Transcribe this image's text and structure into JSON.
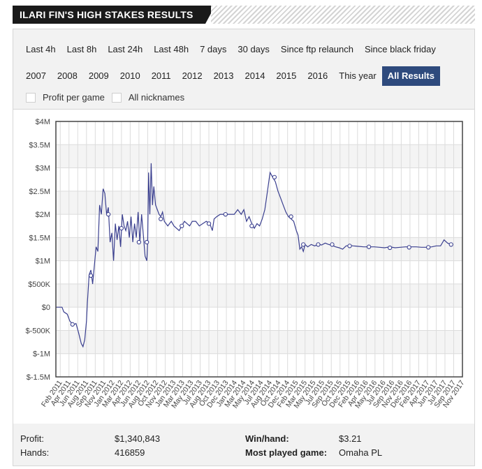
{
  "header": {
    "title": "ILARI FIN'S HIGH STAKES RESULTS"
  },
  "filters": {
    "row1": [
      "Last 4h",
      "Last 8h",
      "Last 24h",
      "Last 48h",
      "7 days",
      "30 days",
      "Since ftp relaunch",
      "Since black friday"
    ],
    "row2": [
      "2007",
      "2008",
      "2009",
      "2010",
      "2011",
      "2012",
      "2013",
      "2014",
      "2015",
      "2016",
      "This year",
      "All Results"
    ],
    "active": "All Results",
    "checkboxes": [
      "Profit per game",
      "All nicknames"
    ]
  },
  "stats": {
    "profit_label": "Profit:",
    "profit_value": "$1,340,843",
    "hands_label": "Hands:",
    "hands_value": "416859",
    "winhand_label": "Win/hand:",
    "winhand_value": "$3.21",
    "game_label": "Most played game:",
    "game_value": "Omaha PL"
  },
  "chart_data": {
    "type": "line",
    "title": "",
    "xlabel": "",
    "ylabel": "",
    "ylim": [
      -1500000,
      4000000
    ],
    "y_ticks": [
      4000000,
      3500000,
      3000000,
      2500000,
      2000000,
      1500000,
      1000000,
      500000,
      0,
      -500000,
      -1000000,
      -1500000
    ],
    "y_tick_labels": [
      "$4M",
      "$3.5M",
      "$3M",
      "$2.5M",
      "$2M",
      "$1.5M",
      "$1M",
      "$500K",
      "$0",
      "$-500K",
      "$-1M",
      "$-1.5M"
    ],
    "x_tick_labels": [
      "Feb 2011",
      "Apr 2011",
      "Jun 2011",
      "Aug 2011",
      "Sep 2011",
      "Nov 2011",
      "Jan 2012",
      "Mar 2012",
      "Apr 2012",
      "Jun 2012",
      "Aug 2012",
      "Oct 2012",
      "Nov 2012",
      "Jan 2013",
      "Mar 2013",
      "May 2013",
      "Jul 2013",
      "Aug 2013",
      "Oct 2013",
      "Dec 2013",
      "Jan 2014",
      "Mar 2014",
      "May 2014",
      "Jul 2014",
      "Aug 2014",
      "Oct 2014",
      "Dec 2014",
      "Feb 2015",
      "Mar 2015",
      "May 2015",
      "Jul 2015",
      "Sep 2015",
      "Oct 2015",
      "Dec 2015",
      "Feb 2016",
      "Apr 2016",
      "May 2016",
      "Jul 2016",
      "Sep 2016",
      "Nov 2016",
      "Dec 2016",
      "Feb 2017",
      "Apr 2017",
      "Jun 2017",
      "Jul 2017",
      "Sep 2017",
      "Nov 2017"
    ],
    "grid": true,
    "series": [
      {
        "color": "#3a3f8f",
        "points": [
          [
            0,
            0
          ],
          [
            0.7,
            0
          ],
          [
            0.9,
            -100000
          ],
          [
            1.3,
            -150000
          ],
          [
            1.6,
            -300000
          ],
          [
            2.0,
            -380000
          ],
          [
            2.3,
            -350000
          ],
          [
            2.6,
            -550000
          ],
          [
            2.9,
            -780000
          ],
          [
            3.1,
            -850000
          ],
          [
            3.3,
            -700000
          ],
          [
            3.5,
            -300000
          ],
          [
            3.6,
            100000
          ],
          [
            3.8,
            700000
          ],
          [
            4.0,
            800000
          ],
          [
            4.2,
            500000
          ],
          [
            4.4,
            900000
          ],
          [
            4.6,
            1300000
          ],
          [
            4.8,
            1200000
          ],
          [
            5.0,
            2200000
          ],
          [
            5.2,
            2000000
          ],
          [
            5.4,
            2550000
          ],
          [
            5.6,
            2450000
          ],
          [
            5.8,
            2000000
          ],
          [
            6.0,
            2150000
          ],
          [
            6.2,
            1400000
          ],
          [
            6.4,
            1600000
          ],
          [
            6.6,
            1000000
          ],
          [
            6.8,
            1800000
          ],
          [
            7.0,
            1450000
          ],
          [
            7.2,
            1750000
          ],
          [
            7.4,
            1300000
          ],
          [
            7.6,
            2000000
          ],
          [
            7.8,
            1750000
          ],
          [
            8.0,
            1650000
          ],
          [
            8.2,
            1850000
          ],
          [
            8.4,
            1500000
          ],
          [
            8.6,
            1950000
          ],
          [
            8.8,
            1400000
          ],
          [
            9.0,
            1800000
          ],
          [
            9.2,
            1500000
          ],
          [
            9.4,
            2050000
          ],
          [
            9.6,
            1400000
          ],
          [
            9.8,
            2000000
          ],
          [
            10.0,
            1550000
          ],
          [
            10.2,
            1100000
          ],
          [
            10.4,
            1000000
          ],
          [
            10.5,
            1400000
          ],
          [
            10.6,
            2900000
          ],
          [
            10.75,
            2000000
          ],
          [
            10.9,
            3100000
          ],
          [
            11.05,
            2200000
          ],
          [
            11.2,
            2600000
          ],
          [
            11.4,
            2200000
          ],
          [
            11.6,
            2100000
          ],
          [
            11.8,
            2000000
          ],
          [
            12.0,
            1950000
          ],
          [
            12.2,
            2050000
          ],
          [
            12.4,
            1850000
          ],
          [
            12.6,
            1800000
          ],
          [
            12.8,
            1750000
          ],
          [
            13.0,
            1800000
          ],
          [
            13.2,
            1850000
          ],
          [
            13.5,
            1750000
          ],
          [
            13.8,
            1700000
          ],
          [
            14.1,
            1650000
          ],
          [
            14.4,
            1750000
          ],
          [
            14.7,
            1850000
          ],
          [
            15.0,
            1800000
          ],
          [
            15.3,
            1750000
          ],
          [
            15.6,
            1850000
          ],
          [
            16.0,
            1850000
          ],
          [
            16.4,
            1750000
          ],
          [
            16.8,
            1800000
          ],
          [
            17.2,
            1850000
          ],
          [
            17.6,
            1800000
          ],
          [
            17.9,
            1650000
          ],
          [
            18.1,
            1900000
          ],
          [
            18.4,
            1950000
          ],
          [
            18.8,
            2000000
          ],
          [
            19.2,
            2000000
          ],
          [
            19.6,
            2000000
          ],
          [
            20.0,
            2000000
          ],
          [
            20.4,
            2000000
          ],
          [
            20.8,
            2100000
          ],
          [
            21.2,
            2000000
          ],
          [
            21.5,
            2100000
          ],
          [
            21.8,
            1850000
          ],
          [
            22.1,
            1950000
          ],
          [
            22.4,
            1800000
          ],
          [
            22.7,
            1700000
          ],
          [
            23.0,
            1800000
          ],
          [
            23.3,
            1750000
          ],
          [
            23.6,
            1900000
          ],
          [
            23.9,
            2100000
          ],
          [
            24.2,
            2500000
          ],
          [
            24.5,
            2900000
          ],
          [
            24.8,
            2800000
          ],
          [
            25.1,
            2700000
          ],
          [
            25.4,
            2500000
          ],
          [
            25.7,
            2350000
          ],
          [
            26.0,
            2200000
          ],
          [
            26.3,
            2050000
          ],
          [
            26.6,
            1950000
          ],
          [
            26.9,
            1900000
          ],
          [
            27.2,
            1850000
          ],
          [
            27.5,
            1650000
          ],
          [
            27.7,
            1550000
          ],
          [
            27.9,
            1250000
          ],
          [
            28.1,
            1300000
          ],
          [
            28.3,
            1200000
          ],
          [
            28.5,
            1350000
          ],
          [
            28.8,
            1300000
          ],
          [
            29.2,
            1350000
          ],
          [
            29.6,
            1320000
          ],
          [
            30.0,
            1350000
          ],
          [
            30.4,
            1340000
          ],
          [
            30.8,
            1380000
          ],
          [
            31.2,
            1350000
          ],
          [
            31.6,
            1330000
          ],
          [
            32.0,
            1300000
          ],
          [
            32.4,
            1280000
          ],
          [
            32.8,
            1250000
          ],
          [
            33.2,
            1320000
          ],
          [
            33.6,
            1330000
          ],
          [
            34.0,
            1320000
          ],
          [
            34.6,
            1310000
          ],
          [
            35.2,
            1300000
          ],
          [
            35.8,
            1300000
          ],
          [
            36.4,
            1300000
          ],
          [
            37.0,
            1290000
          ],
          [
            37.6,
            1280000
          ],
          [
            38.2,
            1300000
          ],
          [
            38.8,
            1280000
          ],
          [
            39.4,
            1290000
          ],
          [
            40.0,
            1300000
          ],
          [
            40.6,
            1300000
          ],
          [
            41.2,
            1300000
          ],
          [
            41.8,
            1290000
          ],
          [
            42.4,
            1290000
          ],
          [
            43.0,
            1300000
          ],
          [
            43.5,
            1320000
          ],
          [
            44.0,
            1320000
          ],
          [
            44.4,
            1450000
          ],
          [
            44.8,
            1380000
          ],
          [
            45.2,
            1350000
          ]
        ],
        "markers": [
          [
            1.9,
            -370000
          ],
          [
            4.0,
            680000
          ],
          [
            6.0,
            2000000
          ],
          [
            7.5,
            1700000
          ],
          [
            9.5,
            1400000
          ],
          [
            10.4,
            1400000
          ],
          [
            12.0,
            1900000
          ],
          [
            14.4,
            1750000
          ],
          [
            17.5,
            1800000
          ],
          [
            19.4,
            2000000
          ],
          [
            22.4,
            1750000
          ],
          [
            25.0,
            2800000
          ],
          [
            26.9,
            1950000
          ],
          [
            28.3,
            1350000
          ],
          [
            30.0,
            1350000
          ],
          [
            31.6,
            1350000
          ],
          [
            33.6,
            1320000
          ],
          [
            35.8,
            1300000
          ],
          [
            38.2,
            1280000
          ],
          [
            40.4,
            1290000
          ],
          [
            42.6,
            1290000
          ],
          [
            45.2,
            1350000
          ]
        ]
      }
    ]
  }
}
